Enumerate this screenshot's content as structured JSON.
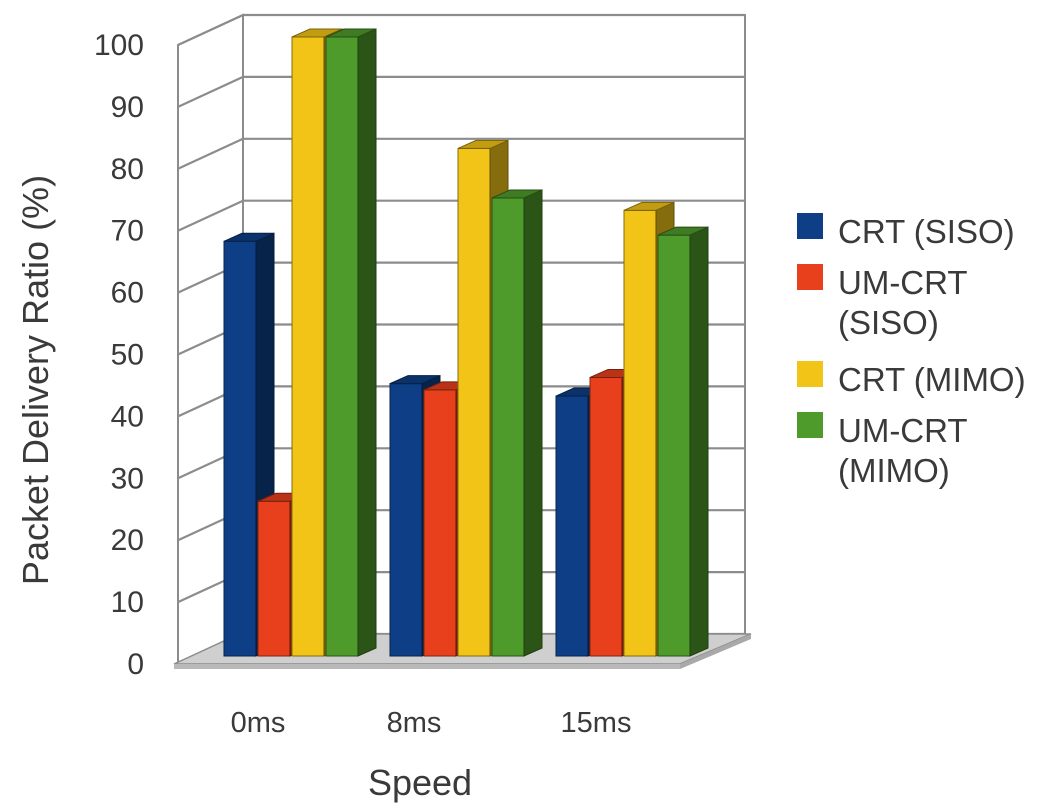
{
  "chart_data": {
    "type": "bar",
    "categories": [
      "0ms",
      "8ms",
      "15ms"
    ],
    "series": [
      {
        "name": "CRT (SISO)",
        "color": "#0e3f86",
        "values": [
          67,
          44,
          42
        ]
      },
      {
        "name": "UM-CRT (SISO)",
        "color": "#e8401c",
        "values": [
          25,
          43,
          45
        ]
      },
      {
        "name": "CRT (MIMO)",
        "color": "#f2c417",
        "values": [
          100,
          82,
          72
        ]
      },
      {
        "name": "UM-CRT (MIMO)",
        "color": "#4e9a2a",
        "values": [
          100,
          74,
          68
        ]
      }
    ],
    "legend": {
      "placement": "right",
      "entries": [
        {
          "lines": [
            "CRT (SISO)"
          ]
        },
        {
          "lines": [
            "UM-CRT",
            "(SISO)"
          ]
        },
        {
          "lines": [
            "CRT (MIMO)"
          ]
        },
        {
          "lines": [
            "UM-CRT",
            "(MIMO)"
          ]
        }
      ]
    },
    "yticks": [
      "0",
      "10",
      "20",
      "30",
      "40",
      "50",
      "60",
      "70",
      "80",
      "90",
      "100"
    ],
    "ylim": [
      0,
      100
    ],
    "xlabel": "Speed",
    "ylabel": "Packet Delivery Ratio (%)",
    "grid": true,
    "style": "3d-clustered-column"
  }
}
